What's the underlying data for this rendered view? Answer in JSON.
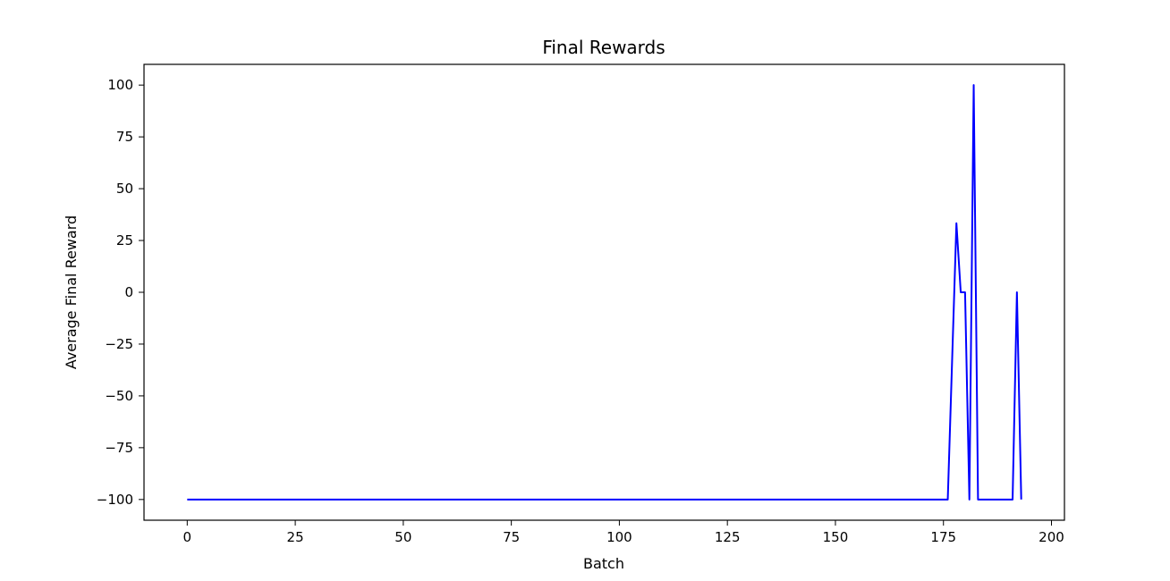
{
  "chart_data": {
    "type": "line",
    "title": "Final Rewards",
    "xlabel": "Batch",
    "ylabel": "Average Final Reward",
    "xlim": [
      -10,
      203
    ],
    "ylim": [
      -110,
      110
    ],
    "xticks": [
      0,
      25,
      50,
      75,
      100,
      125,
      150,
      175,
      200
    ],
    "xtick_labels": [
      "0",
      "25",
      "50",
      "75",
      "100",
      "125",
      "150",
      "175",
      "200"
    ],
    "yticks": [
      100,
      75,
      50,
      25,
      0,
      -25,
      -50,
      -75,
      -100
    ],
    "ytick_labels": [
      "100",
      "75",
      "50",
      "25",
      "0",
      "−25",
      "−50",
      "−75",
      "−100"
    ],
    "grid": false,
    "series": [
      {
        "color": "#0000ff",
        "points": [
          [
            0,
            -100
          ],
          [
            176,
            -100
          ],
          [
            177,
            -33.3
          ],
          [
            178,
            33.3
          ],
          [
            179,
            0
          ],
          [
            180,
            0
          ],
          [
            181,
            -100
          ],
          [
            182,
            100
          ],
          [
            183,
            -100
          ],
          [
            191,
            -100
          ],
          [
            192,
            0
          ],
          [
            193,
            -100
          ]
        ]
      }
    ]
  }
}
